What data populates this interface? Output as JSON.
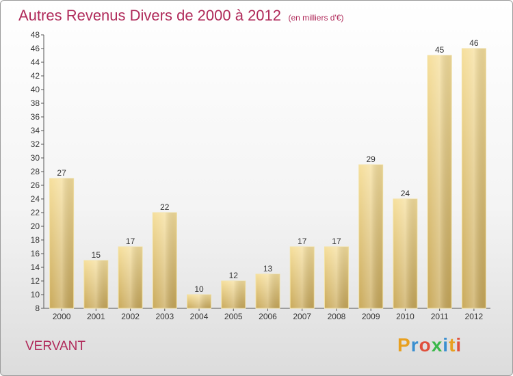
{
  "title": "Autres Revenus Divers de 2000 à 2012",
  "unit_note": "(en milliers d'€)",
  "location": "VERVANT",
  "logo": {
    "letters": [
      "P",
      "r",
      "o",
      "x",
      "i",
      "t",
      "i"
    ],
    "colors": [
      "#e8a020",
      "#3a8fd0",
      "#e0503c",
      "#3ab84a",
      "#3a8fd0",
      "#e8a020",
      "#e0503c"
    ]
  },
  "colors": {
    "bar": "#e8cf86",
    "title": "#b02a5a"
  },
  "chart_data": {
    "type": "bar",
    "categories": [
      "2000",
      "2001",
      "2002",
      "2003",
      "2004",
      "2005",
      "2006",
      "2007",
      "2008",
      "2009",
      "2010",
      "2011",
      "2012"
    ],
    "values": [
      27,
      15,
      17,
      22,
      10,
      12,
      13,
      17,
      17,
      29,
      24,
      45,
      46
    ],
    "ylim": [
      8,
      48
    ],
    "yticks": [
      8,
      10,
      12,
      14,
      16,
      18,
      20,
      22,
      24,
      26,
      28,
      30,
      32,
      34,
      36,
      38,
      40,
      42,
      44,
      46,
      48
    ],
    "grid": false,
    "legend": "none"
  }
}
